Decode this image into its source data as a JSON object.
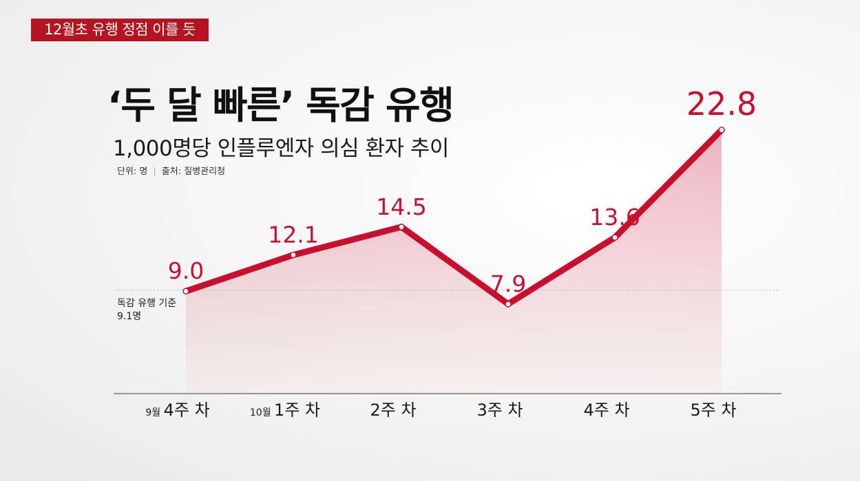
{
  "tag": "12월초 유행 정점 이를 듯",
  "title": "‘두 달 빠른’ 독감 유행",
  "subtitle": "1,000명당 인플루엔자 의심 환자 추이",
  "unit": "단위: 명",
  "source": "출처: 질병관리청",
  "threshold": {
    "label_line1": "독감 유행 기준",
    "label_line2": "9.1명",
    "value": 9.1
  },
  "colors": {
    "accent": "#c8102e",
    "tag_bg": "#b3141f"
  },
  "chart_data": {
    "type": "area",
    "categories": [
      {
        "prefix": "9월",
        "label": "4주 차"
      },
      {
        "prefix": "10월",
        "label": "1주 차"
      },
      {
        "prefix": "",
        "label": "2주 차"
      },
      {
        "prefix": "",
        "label": "3주 차"
      },
      {
        "prefix": "",
        "label": "4주 차"
      },
      {
        "prefix": "",
        "label": "5주 차"
      }
    ],
    "values": [
      9.0,
      12.1,
      14.5,
      7.9,
      13.6,
      22.8
    ],
    "value_labels": [
      "9.0",
      "12.1",
      "14.5",
      "7.9",
      "13.6",
      "22.8"
    ],
    "title": "1,000명당 인플루엔자 의심 환자 추이",
    "xlabel": "",
    "ylabel": "",
    "ylim": [
      0,
      22.8
    ],
    "grid": false,
    "legend": "none"
  }
}
